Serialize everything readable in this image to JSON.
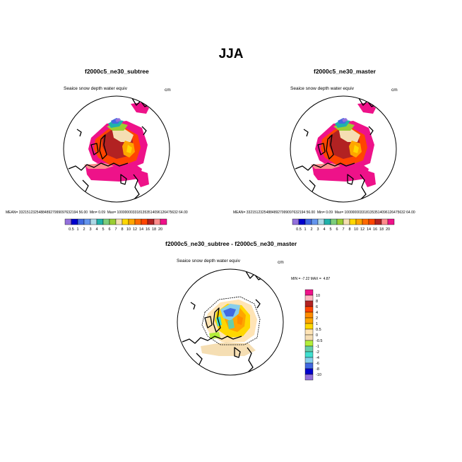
{
  "page_title": "JJA",
  "colors": {
    "palette": [
      "#9370db",
      "#0000cd",
      "#4169e1",
      "#6495ed",
      "#add8e6",
      "#20b2aa",
      "#7ccd7c",
      "#9acd32",
      "#f5deb3",
      "#ffd700",
      "#ffa500",
      "#ff6a00",
      "#ff4500",
      "#b22222",
      "#ff8c8c",
      "#ee1289"
    ],
    "diff_palette": [
      "#ee1289",
      "#ffb6c1",
      "#b22222",
      "#ff4500",
      "#ff8c00",
      "#ffa500",
      "#ffd700",
      "#ffe4b5",
      "#f5deb3",
      "#b3ee3a",
      "#66cdaa",
      "#40e0d0",
      "#87ceeb",
      "#4169e1",
      "#0000cd",
      "#9370db"
    ]
  },
  "chart_data": [
    {
      "type": "heatmap",
      "projection": "north-polar-stereographic",
      "case": "f2000c5_ne30_subtree",
      "variable": "Seaice snow depth water equiv",
      "units": "cm",
      "stats_text": "MEAN= 3321512325488489279990976321945 6.00",
      "mean_label": "MEAN=",
      "mean_value": "332151232548848927999097632194 56.00",
      "min_label": "Min=",
      "min_value": "0.09",
      "max_label": "Max=",
      "max_value": "1000000033181353514096126475632 64.00",
      "colorbar_labels": [
        "0.5",
        "1",
        "2",
        "3",
        "4",
        "5",
        "6",
        "7",
        "8",
        "10",
        "12",
        "14",
        "16",
        "18",
        "20"
      ]
    },
    {
      "type": "heatmap",
      "projection": "north-polar-stereographic",
      "case": "f2000c5_ne30_master",
      "variable": "Seaice snow depth water equiv",
      "units": "cm",
      "mean_label": "MEAN=",
      "mean_value": "332151232548848927999097632194 56.00",
      "min_label": "Min=",
      "min_value": "0.09",
      "max_label": "Max=",
      "max_value": "1000000033181353514096126475632 64.00",
      "colorbar_labels": [
        "0.5",
        "1",
        "2",
        "3",
        "4",
        "5",
        "6",
        "7",
        "8",
        "10",
        "12",
        "14",
        "16",
        "18",
        "20"
      ]
    },
    {
      "type": "heatmap",
      "projection": "north-polar-stereographic",
      "case": "f2000c5_ne30_subtree - f2000c5_ne30_master",
      "variable": "Seaice snow depth water equiv",
      "units": "cm",
      "min_label": "MIN =",
      "min_value": "-7.22",
      "max_label": "MAX =",
      "max_value": "4.87",
      "colorbar_labels": [
        "10",
        "8",
        "6",
        "4",
        "2",
        "1",
        "0.5",
        "0",
        "-0.5",
        "-1",
        "-2",
        "-4",
        "-6",
        "-8",
        "-10"
      ]
    }
  ]
}
